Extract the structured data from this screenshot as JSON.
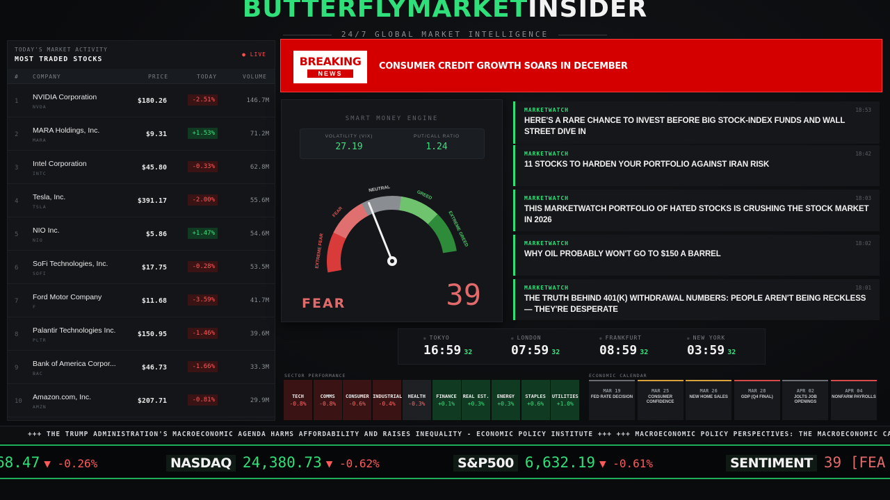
{
  "header": {
    "title_green": "BUTTERFLYMARKET",
    "title_white": "INSIDER",
    "subtitle": "24/7 GLOBAL MARKET INTELLIGENCE"
  },
  "stocks": {
    "kicker": "TODAY'S MARKET ACTIVITY",
    "title": "MOST TRADED STOCKS",
    "live": "● LIVE",
    "columns": [
      "#",
      "COMPANY",
      "PRICE",
      "TODAY",
      "VOLUME"
    ],
    "rows": [
      {
        "n": "1",
        "name": "NVIDIA Corporation",
        "ticker": "NVDA",
        "price": "$180.26",
        "change": "-2.51%",
        "dir": "dn",
        "volume": "146.7M"
      },
      {
        "n": "2",
        "name": "MARA Holdings, Inc.",
        "ticker": "MARA",
        "price": "$9.31",
        "change": "+1.53%",
        "dir": "up",
        "volume": "71.2M"
      },
      {
        "n": "3",
        "name": "Intel Corporation",
        "ticker": "INTC",
        "price": "$45.80",
        "change": "-0.33%",
        "dir": "dn",
        "volume": "62.8M"
      },
      {
        "n": "4",
        "name": "Tesla, Inc.",
        "ticker": "TSLA",
        "price": "$391.17",
        "change": "-2.00%",
        "dir": "dn",
        "volume": "55.6M"
      },
      {
        "n": "5",
        "name": "NIO Inc.",
        "ticker": "NIO",
        "price": "$5.86",
        "change": "+1.47%",
        "dir": "up",
        "volume": "54.6M"
      },
      {
        "n": "6",
        "name": "SoFi Technologies, Inc.",
        "ticker": "SOFI",
        "price": "$17.75",
        "change": "-0.28%",
        "dir": "dn",
        "volume": "53.5M"
      },
      {
        "n": "7",
        "name": "Ford Motor Company",
        "ticker": "F",
        "price": "$11.68",
        "change": "-3.59%",
        "dir": "dn",
        "volume": "41.7M"
      },
      {
        "n": "8",
        "name": "Palantir Technologies Inc.",
        "ticker": "PLTR",
        "price": "$150.95",
        "change": "-1.46%",
        "dir": "dn",
        "volume": "39.6M"
      },
      {
        "n": "9",
        "name": "Bank of America Corpor...",
        "ticker": "BAC",
        "price": "$46.73",
        "change": "-1.66%",
        "dir": "dn",
        "volume": "33.3M"
      },
      {
        "n": "10",
        "name": "Amazon.com, Inc.",
        "ticker": "AMZN",
        "price": "$207.71",
        "change": "-0.81%",
        "dir": "dn",
        "volume": "29.9M"
      }
    ]
  },
  "breaking": {
    "logo_top": "BREAKING",
    "logo_bottom": "NEWS",
    "headline": "CONSUMER CREDIT GROWTH SOARS IN DECEMBER"
  },
  "gauge": {
    "title": "SMART MONEY ENGINE",
    "vix_label": "VOLATILITY (VIX)",
    "vix_value": "27.19",
    "pc_label": "PUT/CALL RATIO",
    "pc_value": "1.24",
    "zones": [
      "EXTREME FEAR",
      "FEAR",
      "NEUTRAL",
      "GREED",
      "EXTREME GREED"
    ],
    "sentiment_label": "FEAR",
    "score": "39",
    "score_value": 39,
    "colors": {
      "extreme_fear": "#d93b3b",
      "fear": "#e07070",
      "neutral": "#8a8d92",
      "greed": "#6fc36f",
      "extreme_greed": "#2e8b3a"
    }
  },
  "news": [
    {
      "source": "MARKETWATCH",
      "time": "18:53",
      "headline": "HERE'S A RARE CHANCE TO INVEST BEFORE BIG STOCK-INDEX FUNDS AND WALL STREET DIVE IN"
    },
    {
      "source": "MARKETWATCH",
      "time": "18:42",
      "headline": "11 STOCKS TO HARDEN YOUR PORTFOLIO AGAINST IRAN RISK"
    },
    {
      "source": "MARKETWATCH",
      "time": "18:03",
      "headline": "THIS MARKETWATCH PORTFOLIO OF HATED STOCKS IS CRUSHING THE STOCK MARKET IN 2026"
    },
    {
      "source": "MARKETWATCH",
      "time": "18:02",
      "headline": "WHY OIL PROBABLY WON'T GO TO $150 A BARREL"
    },
    {
      "source": "MARKETWATCH",
      "time": "18:01",
      "headline": "THE TRUTH BEHIND 401(K) WITHDRAWAL NUMBERS: PEOPLE AREN'T BEING RECKLESS — THEY'RE DESPERATE"
    }
  ],
  "clocks": [
    {
      "city": "TOKYO",
      "time": "16:59",
      "sec": "32"
    },
    {
      "city": "LONDON",
      "time": "07:59",
      "sec": "32"
    },
    {
      "city": "FRANKFURT",
      "time": "08:59",
      "sec": "32"
    },
    {
      "city": "NEW YORK",
      "time": "03:59",
      "sec": "32"
    }
  ],
  "sectors": {
    "label": "SECTOR PERFORMANCE",
    "items": [
      {
        "name": "TECH",
        "pct": "-0.8%",
        "dir": "dn"
      },
      {
        "name": "COMMS",
        "pct": "-0.8%",
        "dir": "dn"
      },
      {
        "name": "CONSUMER",
        "pct": "-0.6%",
        "dir": "dn"
      },
      {
        "name": "INDUSTRIAL",
        "pct": "-0.4%",
        "dir": "dn"
      },
      {
        "name": "HEALTH",
        "pct": "-0.3%",
        "dir": "nt"
      },
      {
        "name": "FINANCE",
        "pct": "+0.1%",
        "dir": "up"
      },
      {
        "name": "REAL EST.",
        "pct": "+0.3%",
        "dir": "up"
      },
      {
        "name": "ENERGY",
        "pct": "+0.3%",
        "dir": "up"
      },
      {
        "name": "STAPLES",
        "pct": "+0.6%",
        "dir": "up"
      },
      {
        "name": "UTILITIES",
        "pct": "+1.0%",
        "dir": "up"
      }
    ]
  },
  "calendar": {
    "label": "ECONOMIC CALENDAR",
    "items": [
      {
        "date": "MAR 19",
        "event": "FED RATE DECISION"
      },
      {
        "date": "MAR 25",
        "event": "CONSUMER CONFIDENCE"
      },
      {
        "date": "MAR 26",
        "event": "NEW HOME SALES"
      },
      {
        "date": "MAR 28",
        "event": "GDP (Q4 FINAL)"
      },
      {
        "date": "APR 02",
        "event": "JOLTS JOB OPENINGS"
      },
      {
        "date": "APR 04",
        "event": "NONFARM PAYROLLS"
      }
    ]
  },
  "ticker_news": "+++ THE TRUMP ADMINISTRATION'S MACROECONOMIC AGENDA HARMS AFFORDABILITY AND RAISES INEQUALITY - ECONOMIC POLICY INSTITUTE +++ +++ MACROECONOMIC POLICY PERSPECTIVES: THE MACROECONOMIC CAUSES",
  "ticker_indices": [
    {
      "label": "",
      "value": "68.47",
      "change": "▼ -0.26%"
    },
    {
      "label": "NASDAQ",
      "value": "24,380.73",
      "change": "▼ -0.62%"
    },
    {
      "label": "S&P500",
      "value": "6,632.19",
      "change": "▼ -0.61%"
    },
    {
      "label": "SENTIMENT",
      "value": "39 [FEA",
      "change": ""
    }
  ]
}
